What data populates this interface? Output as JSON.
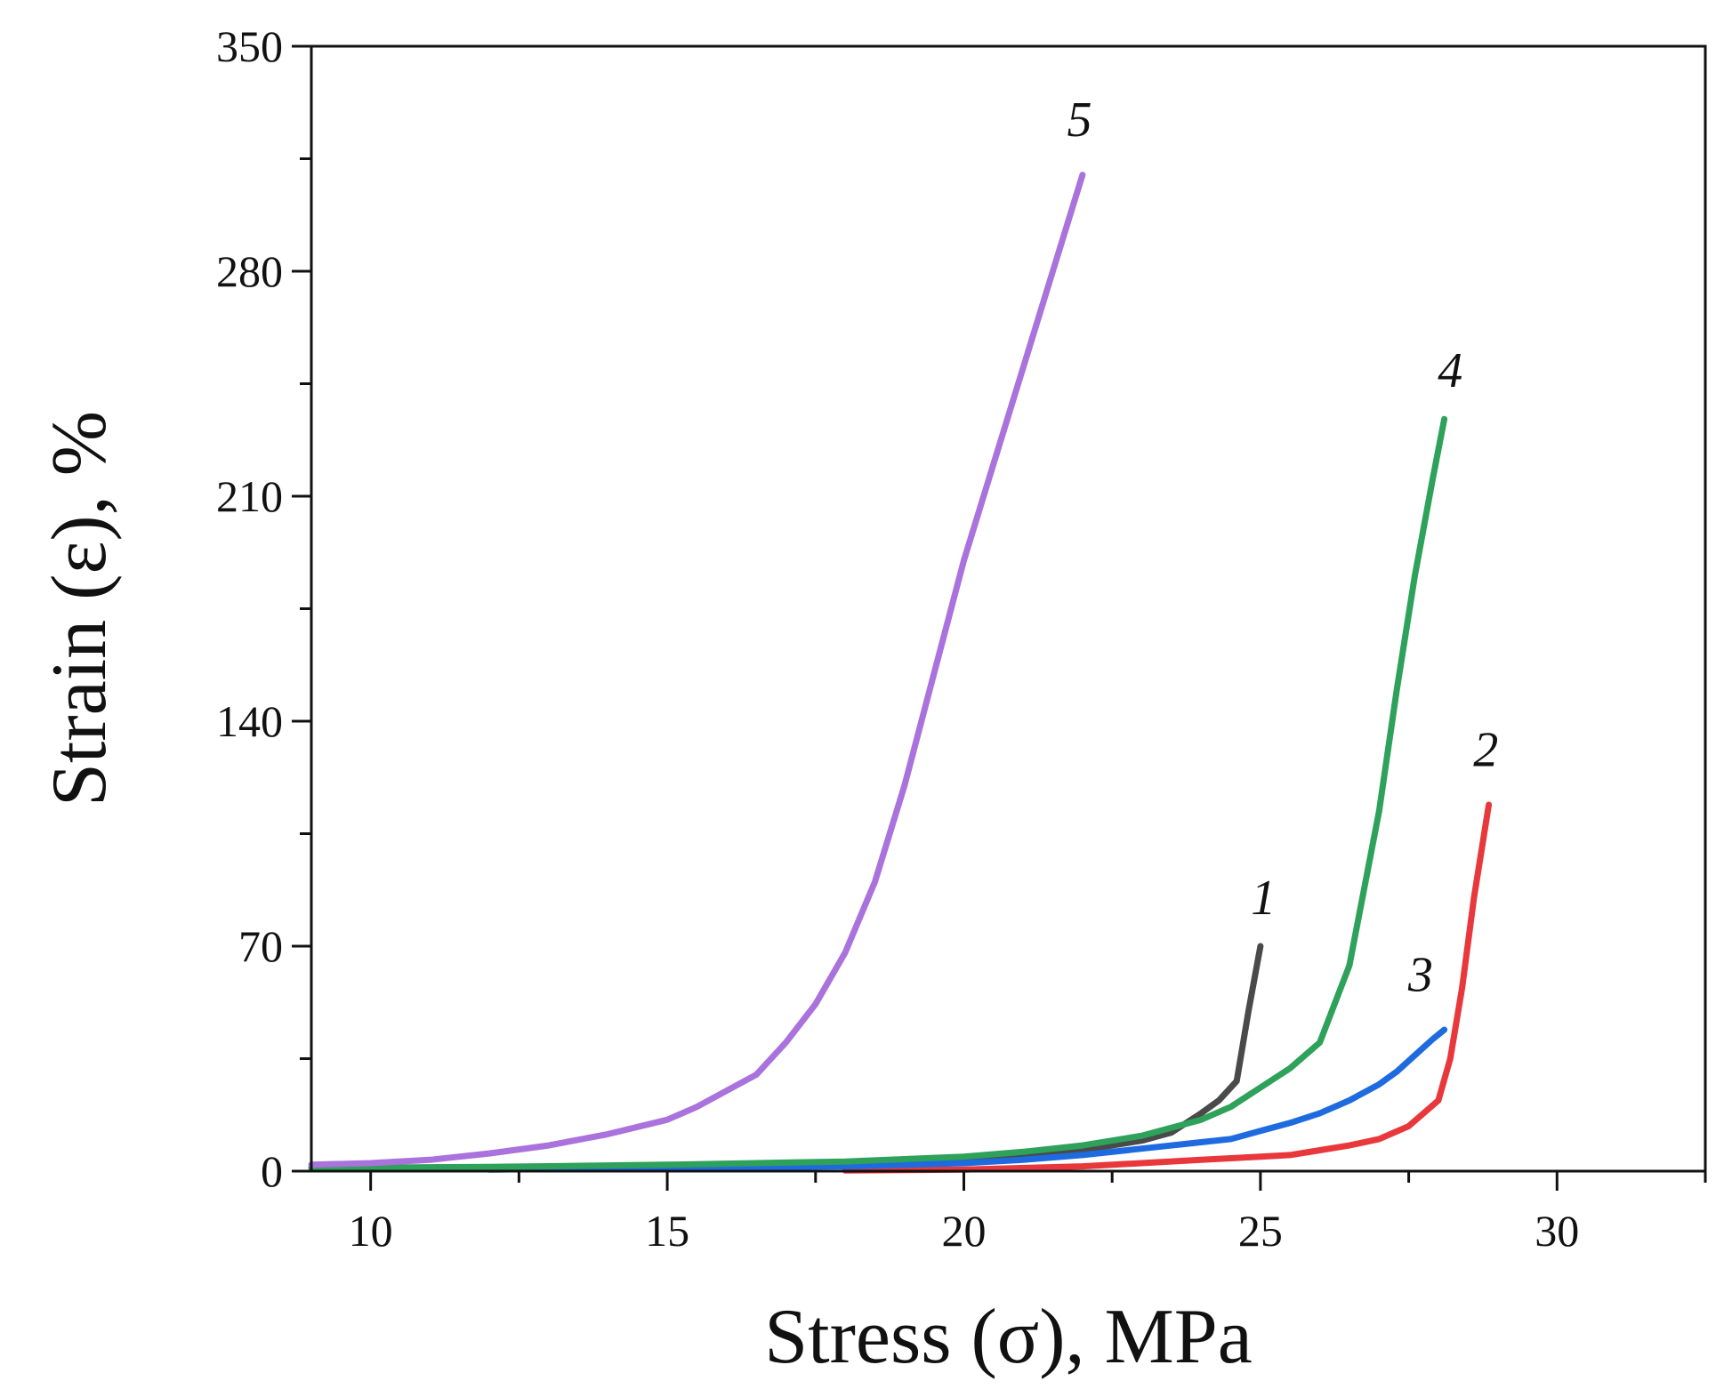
{
  "chart_data": {
    "type": "line",
    "title": "",
    "xlabel": "Stress (σ), MPa",
    "ylabel": "Strain (ε), %",
    "xlim": [
      9,
      32.5
    ],
    "ylim": [
      0,
      350
    ],
    "xticks": [
      10,
      15,
      20,
      25,
      30
    ],
    "xtick_labels": [
      "10",
      "15",
      "20",
      "25",
      "30"
    ],
    "xminor": [
      12.5,
      17.5,
      22.5,
      27.5,
      32.5
    ],
    "yticks": [
      0,
      70,
      140,
      210,
      280,
      350
    ],
    "ytick_labels": [
      "0",
      "70",
      "140",
      "210",
      "280",
      "350"
    ],
    "yminor": [
      35,
      105,
      175,
      245,
      315
    ],
    "grid": false,
    "legend": "none",
    "series": [
      {
        "name": "1",
        "label": "1",
        "color": "#4a4a4a",
        "x": [
          9,
          12,
          15,
          18,
          20,
          21,
          22,
          23,
          23.5,
          24,
          24.3,
          24.6,
          24.8,
          25
        ],
        "y": [
          1,
          1.2,
          1.5,
          2.5,
          3.5,
          4.5,
          6.5,
          9.5,
          12,
          18,
          22,
          28,
          50,
          70
        ],
        "label_pos": [
          25.05,
          80
        ]
      },
      {
        "name": "2",
        "label": "2",
        "color": "#e8383b",
        "x": [
          18,
          20,
          22,
          23,
          24,
          25,
          25.5,
          26,
          26.5,
          27,
          27.5,
          28,
          28.2,
          28.4,
          28.6,
          28.85
        ],
        "y": [
          0.2,
          0.5,
          1.5,
          2.5,
          3.5,
          4.5,
          5,
          6.5,
          8,
          10,
          14,
          22,
          35,
          57,
          85,
          114
        ],
        "label_pos": [
          28.8,
          126
        ]
      },
      {
        "name": "3",
        "label": "3",
        "color": "#1e6be0",
        "x": [
          12,
          15,
          18,
          20,
          21,
          22,
          23,
          24,
          24.5,
          25,
          25.5,
          26,
          26.5,
          27,
          27.3,
          27.6,
          27.9,
          28.1
        ],
        "y": [
          0.5,
          1,
          1.5,
          2.5,
          3.5,
          5,
          7,
          9,
          10,
          12.5,
          15,
          18,
          22,
          27,
          31,
          36,
          41,
          44
        ],
        "label_pos": [
          27.7,
          56
        ]
      },
      {
        "name": "4",
        "label": "4",
        "color": "#2ea15a",
        "x": [
          9,
          12,
          15,
          18,
          20,
          21,
          22,
          23,
          24,
          24.5,
          25,
          25.5,
          26,
          26.5,
          27,
          27.3,
          27.6,
          27.9,
          28.1
        ],
        "y": [
          1,
          1.3,
          2,
          3,
          4.5,
          6,
          8,
          11,
          16,
          20,
          26,
          32,
          40,
          64,
          112,
          150,
          185,
          215,
          234
        ],
        "label_pos": [
          28.2,
          244
        ]
      },
      {
        "name": "5",
        "label": "5",
        "color": "#aa72dc",
        "x": [
          9,
          10,
          11,
          12,
          13,
          14,
          15,
          15.5,
          16,
          16.5,
          17,
          17.5,
          18,
          18.5,
          19,
          19.5,
          20,
          20.5,
          21,
          21.5,
          22
        ],
        "y": [
          2,
          2.5,
          3.5,
          5.5,
          8,
          11.5,
          16,
          20,
          25,
          30,
          40,
          52,
          68,
          90,
          120,
          155,
          190,
          220,
          250,
          280,
          310
        ],
        "label_pos": [
          21.95,
          322
        ]
      }
    ]
  }
}
